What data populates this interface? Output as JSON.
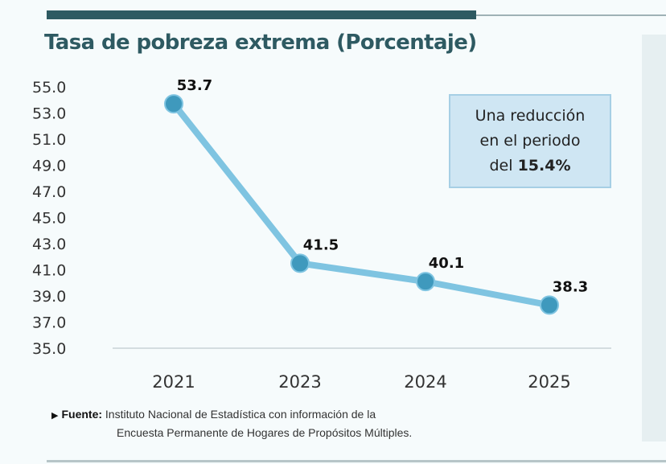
{
  "chart_data": {
    "type": "line",
    "title": "Tasa de pobreza extrema (Porcentaje)",
    "categories": [
      "2021",
      "2023",
      "2024",
      "2025"
    ],
    "series": [
      {
        "name": "Tasa de pobreza extrema",
        "values": [
          53.7,
          41.5,
          40.1,
          38.3
        ]
      }
    ],
    "value_labels": [
      "53.7",
      "41.5",
      "40.1",
      "38.3"
    ],
    "y_ticks": [
      "55.0",
      "53.0",
      "51.0",
      "49.0",
      "47.0",
      "45.0",
      "43.0",
      "41.0",
      "39.0",
      "37.0",
      "35.0"
    ],
    "ylim": [
      35,
      55
    ],
    "xlabel": "",
    "ylabel": "",
    "grid": false
  },
  "callout": {
    "line1": "Una reducción",
    "line2": "en el periodo",
    "line3_prefix": "del ",
    "line3_value": "15.4%"
  },
  "source": {
    "label": "Fuente:",
    "line1": "Instituto Nacional de Estadística con información de la",
    "line2": "Encuesta Permanente de Hogares de Propósitos Múltiples."
  },
  "colors": {
    "line": "#7fc4e1",
    "marker": "#3f99bd",
    "title": "#2e5a62",
    "callout_bg": "#cfe6f3"
  }
}
